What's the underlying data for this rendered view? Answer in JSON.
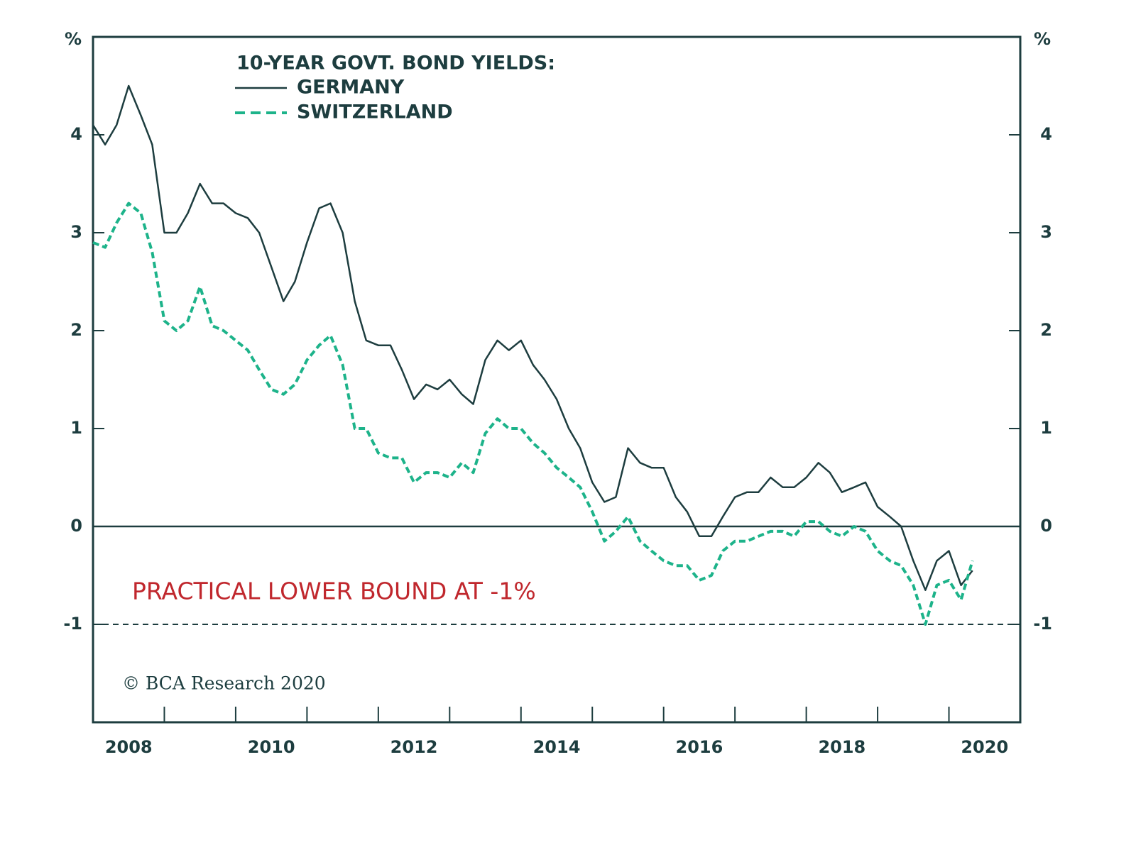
{
  "chart_data": {
    "type": "line",
    "legend_title": "10-YEAR GOVT. BOND YIELDS:",
    "y_unit": "%",
    "y2_unit": "%",
    "annotation": "PRACTICAL LOWER BOUND AT -1%",
    "source": "© BCA Research 2020",
    "xlim": [
      2008,
      2021
    ],
    "ylim": [
      -2,
      5
    ],
    "y2lim": [
      -2,
      5
    ],
    "yticks": [
      -1,
      0,
      1,
      2,
      3,
      4
    ],
    "y2ticks": [
      -1,
      0,
      1,
      2,
      3,
      4
    ],
    "xticks": [
      {
        "value": 2008.5,
        "label": "2008"
      },
      {
        "value": 2010.5,
        "label": "2010"
      },
      {
        "value": 2012.5,
        "label": "2012"
      },
      {
        "value": 2014.5,
        "label": "2014"
      },
      {
        "value": 2016.5,
        "label": "2016"
      },
      {
        "value": 2018.5,
        "label": "2018"
      },
      {
        "value": 2020.5,
        "label": "2020"
      }
    ],
    "xtick_marks": [
      2009,
      2010,
      2011,
      2012,
      2013,
      2014,
      2015,
      2016,
      2017,
      2018,
      2019,
      2020
    ],
    "reference_lines": [
      {
        "value": 0,
        "style": "solid",
        "color": "#1d3d3f"
      },
      {
        "value": -1,
        "style": "dashed",
        "color": "#1d3d3f"
      }
    ],
    "x": [
      2008.0,
      2008.17,
      2008.33,
      2008.5,
      2008.67,
      2008.83,
      2009.0,
      2009.17,
      2009.33,
      2009.5,
      2009.67,
      2009.83,
      2010.0,
      2010.17,
      2010.33,
      2010.5,
      2010.67,
      2010.83,
      2011.0,
      2011.17,
      2011.33,
      2011.5,
      2011.67,
      2011.83,
      2012.0,
      2012.17,
      2012.33,
      2012.5,
      2012.67,
      2012.83,
      2013.0,
      2013.17,
      2013.33,
      2013.5,
      2013.67,
      2013.83,
      2014.0,
      2014.17,
      2014.33,
      2014.5,
      2014.67,
      2014.83,
      2015.0,
      2015.17,
      2015.33,
      2015.5,
      2015.67,
      2015.83,
      2016.0,
      2016.17,
      2016.33,
      2016.5,
      2016.67,
      2016.83,
      2017.0,
      2017.17,
      2017.33,
      2017.5,
      2017.67,
      2017.83,
      2018.0,
      2018.17,
      2018.33,
      2018.5,
      2018.67,
      2018.83,
      2019.0,
      2019.17,
      2019.33,
      2019.5,
      2019.67,
      2019.83,
      2020.0,
      2020.17,
      2020.33
    ],
    "series": [
      {
        "name": "GERMANY",
        "color": "#1d3d3f",
        "dash": "solid",
        "values": [
          4.1,
          3.9,
          4.1,
          4.5,
          4.2,
          3.9,
          3.0,
          3.0,
          3.2,
          3.5,
          3.3,
          3.3,
          3.2,
          3.15,
          3.0,
          2.65,
          2.3,
          2.5,
          2.9,
          3.25,
          3.3,
          3.0,
          2.3,
          1.9,
          1.85,
          1.85,
          1.6,
          1.3,
          1.45,
          1.4,
          1.5,
          1.35,
          1.25,
          1.7,
          1.9,
          1.8,
          1.9,
          1.65,
          1.5,
          1.3,
          1.0,
          0.8,
          0.45,
          0.25,
          0.3,
          0.8,
          0.65,
          0.6,
          0.6,
          0.3,
          0.15,
          -0.1,
          -0.1,
          0.1,
          0.3,
          0.35,
          0.35,
          0.5,
          0.4,
          0.4,
          0.5,
          0.65,
          0.55,
          0.35,
          0.4,
          0.45,
          0.2,
          0.1,
          0.0,
          -0.35,
          -0.65,
          -0.35,
          -0.25,
          -0.6,
          -0.45
        ]
      },
      {
        "name": "SWITZERLAND",
        "color": "#1db38a",
        "dash": "dashed",
        "values": [
          2.9,
          2.85,
          3.1,
          3.3,
          3.2,
          2.8,
          2.1,
          2.0,
          2.1,
          2.45,
          2.05,
          2.0,
          1.9,
          1.8,
          1.6,
          1.4,
          1.35,
          1.45,
          1.7,
          1.85,
          1.95,
          1.65,
          1.0,
          1.0,
          0.75,
          0.7,
          0.7,
          0.45,
          0.55,
          0.55,
          0.5,
          0.65,
          0.55,
          0.95,
          1.1,
          1.0,
          1.0,
          0.85,
          0.75,
          0.6,
          0.5,
          0.4,
          0.15,
          -0.15,
          -0.05,
          0.1,
          -0.15,
          -0.25,
          -0.35,
          -0.4,
          -0.4,
          -0.55,
          -0.5,
          -0.25,
          -0.15,
          -0.15,
          -0.1,
          -0.05,
          -0.05,
          -0.1,
          0.05,
          0.05,
          -0.05,
          -0.1,
          0.0,
          -0.05,
          -0.25,
          -0.35,
          -0.4,
          -0.6,
          -1.0,
          -0.6,
          -0.55,
          -0.75,
          -0.35
        ]
      }
    ]
  }
}
